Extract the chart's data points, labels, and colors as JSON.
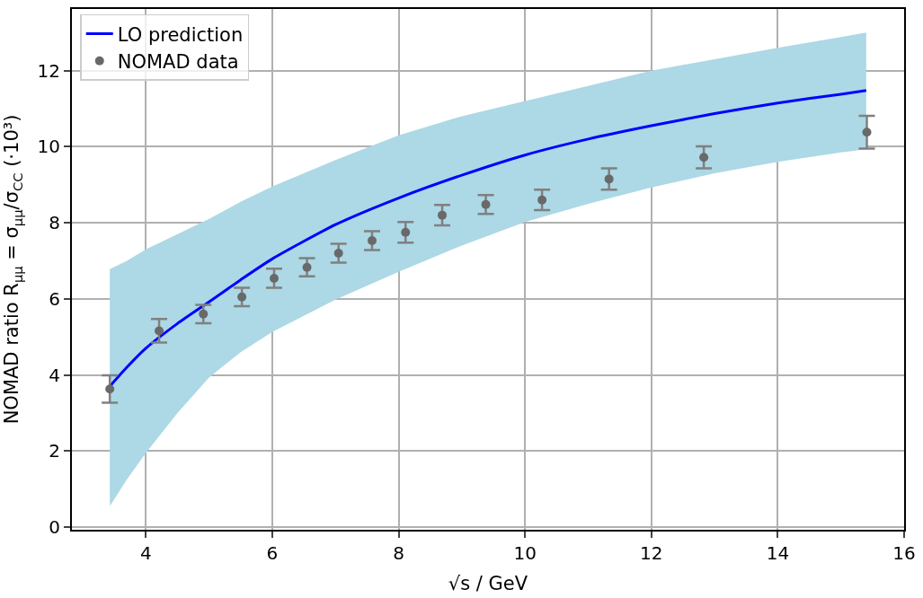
{
  "chart_data": {
    "type": "line",
    "xlabel": "√s / GeV",
    "ylabel": "NOMAD ratio R$_{μμ}$ = σ$_{μμ}$/σ$_{CC}$ (·10³)",
    "series": [
      {
        "name": "LO prediction",
        "color": "#0000ff",
        "marker": "none",
        "line_style": "solid",
        "x": [
          3.43,
          3.7,
          4,
          4.5,
          5,
          5.5,
          6,
          7,
          8,
          9,
          10,
          11,
          12,
          13,
          14,
          15,
          15.4
        ],
        "values": [
          3.7,
          4.2,
          4.7,
          5.35,
          5.92,
          6.5,
          7.05,
          7.95,
          8.65,
          9.25,
          9.78,
          10.2,
          10.55,
          10.87,
          11.15,
          11.38,
          11.48
        ],
        "lower": [
          0.55,
          1.25,
          1.95,
          3.0,
          3.93,
          4.6,
          5.13,
          5.98,
          6.71,
          7.4,
          8.02,
          8.5,
          8.93,
          9.3,
          9.6,
          9.85,
          9.93
        ],
        "upper": [
          6.78,
          7.0,
          7.3,
          7.7,
          8.1,
          8.55,
          8.95,
          9.65,
          10.3,
          10.8,
          11.2,
          11.6,
          12.0,
          12.3,
          12.6,
          12.88,
          13.0
        ]
      },
      {
        "name": "NOMAD data",
        "type": "scatter",
        "color": "#696969",
        "marker": "circle",
        "x": [
          3.43,
          4.21,
          4.91,
          5.52,
          6.03,
          6.55,
          7.05,
          7.58,
          8.11,
          8.69,
          9.38,
          10.27,
          11.33,
          12.83,
          15.41
        ],
        "values": [
          3.63,
          5.16,
          5.6,
          6.05,
          6.54,
          6.83,
          7.2,
          7.53,
          7.75,
          8.2,
          8.48,
          8.6,
          9.15,
          9.72,
          10.38
        ],
        "errors": [
          0.36,
          0.31,
          0.24,
          0.24,
          0.25,
          0.24,
          0.25,
          0.25,
          0.27,
          0.27,
          0.25,
          0.27,
          0.28,
          0.29,
          0.43
        ]
      }
    ],
    "xlim": [
      2.83,
      16.0
    ],
    "ylim": [
      -0.07,
      13.62
    ],
    "xticks": [
      4,
      6,
      8,
      10,
      12,
      14,
      16
    ],
    "yticks": [
      0,
      2,
      4,
      6,
      8,
      10,
      12
    ],
    "grid": true,
    "legend": "top left"
  }
}
